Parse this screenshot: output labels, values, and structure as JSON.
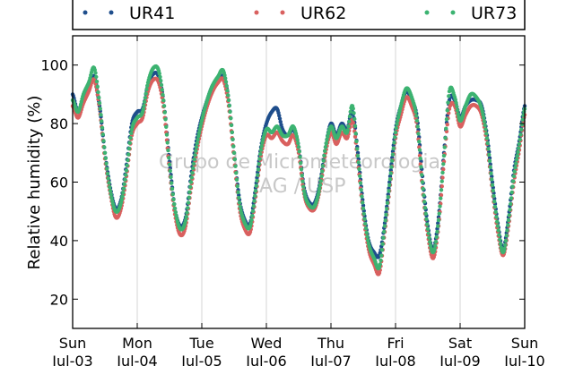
{
  "chart_data": {
    "type": "scatter",
    "title": "",
    "ylabel": "Relative humidity (%)",
    "xlabel": "",
    "ylim": [
      10,
      110
    ],
    "yticks": [
      20,
      40,
      60,
      80,
      100
    ],
    "xlim": [
      "2011-07-03 00:00",
      "2011-07-10 00:00"
    ],
    "xticks": [
      {
        "date": "2011-07-03",
        "day": "Sun",
        "date_label": "Jul-03"
      },
      {
        "date": "2011-07-04",
        "day": "Mon",
        "date_label": "Jul-04"
      },
      {
        "date": "2011-07-05",
        "day": "Tue",
        "date_label": "Jul-05"
      },
      {
        "date": "2011-07-06",
        "day": "Wed",
        "date_label": "Jul-06"
      },
      {
        "date": "2011-07-07",
        "day": "Thu",
        "date_label": "Jul-07"
      },
      {
        "date": "2011-07-08",
        "day": "Fri",
        "date_label": "Jul-08"
      },
      {
        "date": "2011-07-09",
        "day": "Sat",
        "date_label": "Jul-09"
      },
      {
        "date": "2011-07-10",
        "day": "Sun",
        "date_label": "Jul-10"
      }
    ],
    "grid": "vertical",
    "legend_placement": "top, outside",
    "watermark": [
      "Grupo de Micrometeorologia",
      "IAG / USP"
    ],
    "series": [
      {
        "name": "UR41",
        "color": "#1f4e8c",
        "points": [
          [
            "2011-07-03 00:00",
            90
          ],
          [
            "2011-07-03 02:00",
            84
          ],
          [
            "2011-07-03 04:00",
            89
          ],
          [
            "2011-07-03 06:00",
            93
          ],
          [
            "2011-07-03 08:00",
            96
          ],
          [
            "2011-07-03 10:00",
            86
          ],
          [
            "2011-07-03 12:00",
            70
          ],
          [
            "2011-07-03 14:00",
            58
          ],
          [
            "2011-07-03 16:00",
            51
          ],
          [
            "2011-07-03 18:00",
            54
          ],
          [
            "2011-07-03 20:00",
            66
          ],
          [
            "2011-07-03 22:00",
            80
          ],
          [
            "2011-07-04 00:00",
            84
          ],
          [
            "2011-07-04 02:00",
            85
          ],
          [
            "2011-07-04 04:00",
            93
          ],
          [
            "2011-07-04 06:00",
            97
          ],
          [
            "2011-07-04 08:00",
            96
          ],
          [
            "2011-07-04 10:00",
            86
          ],
          [
            "2011-07-04 12:00",
            67
          ],
          [
            "2011-07-04 14:00",
            51
          ],
          [
            "2011-07-04 16:00",
            45
          ],
          [
            "2011-07-04 18:00",
            48
          ],
          [
            "2011-07-04 20:00",
            62
          ],
          [
            "2011-07-04 22:00",
            74
          ],
          [
            "2011-07-05 00:00",
            82
          ],
          [
            "2011-07-05 02:00",
            88
          ],
          [
            "2011-07-05 04:00",
            93
          ],
          [
            "2011-07-05 06:00",
            95
          ],
          [
            "2011-07-05 08:00",
            96
          ],
          [
            "2011-07-05 10:00",
            88
          ],
          [
            "2011-07-05 12:00",
            70
          ],
          [
            "2011-07-05 14:00",
            54
          ],
          [
            "2011-07-05 16:00",
            47
          ],
          [
            "2011-07-05 18:00",
            46
          ],
          [
            "2011-07-05 20:00",
            58
          ],
          [
            "2011-07-05 22:00",
            72
          ],
          [
            "2011-07-06 00:00",
            80
          ],
          [
            "2011-07-06 02:00",
            84
          ],
          [
            "2011-07-06 04:00",
            85
          ],
          [
            "2011-07-06 06:00",
            78
          ],
          [
            "2011-07-06 08:00",
            76
          ],
          [
            "2011-07-06 10:00",
            78
          ],
          [
            "2011-07-06 12:00",
            72
          ],
          [
            "2011-07-06 14:00",
            58
          ],
          [
            "2011-07-06 16:00",
            53
          ],
          [
            "2011-07-06 18:00",
            53
          ],
          [
            "2011-07-06 20:00",
            60
          ],
          [
            "2011-07-06 22:00",
            72
          ],
          [
            "2011-07-07 00:00",
            80
          ],
          [
            "2011-07-07 02:00",
            76
          ],
          [
            "2011-07-07 04:00",
            80
          ],
          [
            "2011-07-07 06:00",
            78
          ],
          [
            "2011-07-07 08:00",
            84
          ],
          [
            "2011-07-07 10:00",
            70
          ],
          [
            "2011-07-07 12:00",
            52
          ],
          [
            "2011-07-07 14:00",
            40
          ],
          [
            "2011-07-07 16:00",
            36
          ],
          [
            "2011-07-07 18:00",
            35
          ],
          [
            "2011-07-07 20:00",
            46
          ],
          [
            "2011-07-07 22:00",
            62
          ],
          [
            "2011-07-08 00:00",
            78
          ],
          [
            "2011-07-08 02:00",
            86
          ],
          [
            "2011-07-08 04:00",
            91
          ],
          [
            "2011-07-08 06:00",
            88
          ],
          [
            "2011-07-08 08:00",
            82
          ],
          [
            "2011-07-08 10:00",
            62
          ],
          [
            "2011-07-08 12:00",
            45
          ],
          [
            "2011-07-08 14:00",
            37
          ],
          [
            "2011-07-08 16:00",
            48
          ],
          [
            "2011-07-08 18:00",
            70
          ],
          [
            "2011-07-08 20:00",
            88
          ],
          [
            "2011-07-08 22:00",
            88
          ],
          [
            "2011-07-09 00:00",
            82
          ],
          [
            "2011-07-09 02:00",
            86
          ],
          [
            "2011-07-09 04:00",
            88
          ],
          [
            "2011-07-09 06:00",
            88
          ],
          [
            "2011-07-09 08:00",
            86
          ],
          [
            "2011-07-09 10:00",
            76
          ],
          [
            "2011-07-09 12:00",
            60
          ],
          [
            "2011-07-09 14:00",
            46
          ],
          [
            "2011-07-09 16:00",
            37
          ],
          [
            "2011-07-09 18:00",
            48
          ],
          [
            "2011-07-09 20:00",
            64
          ],
          [
            "2011-07-09 22:00",
            74
          ],
          [
            "2011-07-10 00:00",
            86
          ]
        ]
      },
      {
        "name": "UR62",
        "color": "#d9605f",
        "points": [
          [
            "2011-07-03 00:00",
            86
          ],
          [
            "2011-07-03 02:00",
            82
          ],
          [
            "2011-07-03 04:00",
            87
          ],
          [
            "2011-07-03 06:00",
            91
          ],
          [
            "2011-07-03 08:00",
            95
          ],
          [
            "2011-07-03 10:00",
            85
          ],
          [
            "2011-07-03 12:00",
            68
          ],
          [
            "2011-07-03 14:00",
            56
          ],
          [
            "2011-07-03 16:00",
            48
          ],
          [
            "2011-07-03 18:00",
            51
          ],
          [
            "2011-07-03 20:00",
            62
          ],
          [
            "2011-07-03 22:00",
            76
          ],
          [
            "2011-07-04 00:00",
            80
          ],
          [
            "2011-07-04 02:00",
            82
          ],
          [
            "2011-07-04 04:00",
            91
          ],
          [
            "2011-07-04 06:00",
            95
          ],
          [
            "2011-07-04 08:00",
            94
          ],
          [
            "2011-07-04 10:00",
            84
          ],
          [
            "2011-07-04 12:00",
            64
          ],
          [
            "2011-07-04 14:00",
            49
          ],
          [
            "2011-07-04 16:00",
            42
          ],
          [
            "2011-07-04 18:00",
            45
          ],
          [
            "2011-07-04 20:00",
            58
          ],
          [
            "2011-07-04 22:00",
            70
          ],
          [
            "2011-07-05 00:00",
            79
          ],
          [
            "2011-07-05 02:00",
            86
          ],
          [
            "2011-07-05 04:00",
            91
          ],
          [
            "2011-07-05 06:00",
            94
          ],
          [
            "2011-07-05 08:00",
            95
          ],
          [
            "2011-07-05 10:00",
            86
          ],
          [
            "2011-07-05 12:00",
            68
          ],
          [
            "2011-07-05 14:00",
            51
          ],
          [
            "2011-07-05 16:00",
            44
          ],
          [
            "2011-07-05 18:00",
            43
          ],
          [
            "2011-07-05 20:00",
            55
          ],
          [
            "2011-07-05 22:00",
            69
          ],
          [
            "2011-07-06 00:00",
            76
          ],
          [
            "2011-07-06 02:00",
            75
          ],
          [
            "2011-07-06 04:00",
            77
          ],
          [
            "2011-07-06 06:00",
            74
          ],
          [
            "2011-07-06 08:00",
            73
          ],
          [
            "2011-07-06 10:00",
            76
          ],
          [
            "2011-07-06 12:00",
            70
          ],
          [
            "2011-07-06 14:00",
            56
          ],
          [
            "2011-07-06 16:00",
            51
          ],
          [
            "2011-07-06 18:00",
            51
          ],
          [
            "2011-07-06 20:00",
            58
          ],
          [
            "2011-07-06 22:00",
            70
          ],
          [
            "2011-07-07 00:00",
            77
          ],
          [
            "2011-07-07 02:00",
            73
          ],
          [
            "2011-07-07 04:00",
            77
          ],
          [
            "2011-07-07 06:00",
            75
          ],
          [
            "2011-07-07 08:00",
            81
          ],
          [
            "2011-07-07 10:00",
            67
          ],
          [
            "2011-07-07 12:00",
            49
          ],
          [
            "2011-07-07 14:00",
            37
          ],
          [
            "2011-07-07 16:00",
            32
          ],
          [
            "2011-07-07 18:00",
            29
          ],
          [
            "2011-07-07 20:00",
            43
          ],
          [
            "2011-07-07 22:00",
            59
          ],
          [
            "2011-07-08 00:00",
            75
          ],
          [
            "2011-07-08 02:00",
            83
          ],
          [
            "2011-07-08 04:00",
            89
          ],
          [
            "2011-07-08 06:00",
            86
          ],
          [
            "2011-07-08 08:00",
            79
          ],
          [
            "2011-07-08 10:00",
            58
          ],
          [
            "2011-07-08 12:00",
            42
          ],
          [
            "2011-07-08 14:00",
            34
          ],
          [
            "2011-07-08 16:00",
            45
          ],
          [
            "2011-07-08 18:00",
            67
          ],
          [
            "2011-07-08 20:00",
            85
          ],
          [
            "2011-07-08 22:00",
            86
          ],
          [
            "2011-07-09 00:00",
            79
          ],
          [
            "2011-07-09 02:00",
            83
          ],
          [
            "2011-07-09 04:00",
            86
          ],
          [
            "2011-07-09 06:00",
            86
          ],
          [
            "2011-07-09 08:00",
            83
          ],
          [
            "2011-07-09 10:00",
            73
          ],
          [
            "2011-07-09 12:00",
            57
          ],
          [
            "2011-07-09 14:00",
            43
          ],
          [
            "2011-07-09 16:00",
            35
          ],
          [
            "2011-07-09 18:00",
            45
          ],
          [
            "2011-07-09 20:00",
            60
          ],
          [
            "2011-07-09 22:00",
            71
          ],
          [
            "2011-07-10 00:00",
            83
          ]
        ]
      },
      {
        "name": "UR73",
        "color": "#3cb371",
        "points": [
          [
            "2011-07-03 00:00",
            88
          ],
          [
            "2011-07-03 02:00",
            84
          ],
          [
            "2011-07-03 04:00",
            90
          ],
          [
            "2011-07-03 06:00",
            94
          ],
          [
            "2011-07-03 08:00",
            99
          ],
          [
            "2011-07-03 10:00",
            87
          ],
          [
            "2011-07-03 12:00",
            70
          ],
          [
            "2011-07-03 14:00",
            57
          ],
          [
            "2011-07-03 16:00",
            50
          ],
          [
            "2011-07-03 18:00",
            53
          ],
          [
            "2011-07-03 20:00",
            64
          ],
          [
            "2011-07-03 22:00",
            78
          ],
          [
            "2011-07-04 00:00",
            82
          ],
          [
            "2011-07-04 02:00",
            84
          ],
          [
            "2011-07-04 04:00",
            94
          ],
          [
            "2011-07-04 06:00",
            99
          ],
          [
            "2011-07-04 08:00",
            98
          ],
          [
            "2011-07-04 10:00",
            86
          ],
          [
            "2011-07-04 12:00",
            66
          ],
          [
            "2011-07-04 14:00",
            51
          ],
          [
            "2011-07-04 16:00",
            44
          ],
          [
            "2011-07-04 18:00",
            47
          ],
          [
            "2011-07-04 20:00",
            60
          ],
          [
            "2011-07-04 22:00",
            72
          ],
          [
            "2011-07-05 00:00",
            81
          ],
          [
            "2011-07-05 02:00",
            88
          ],
          [
            "2011-07-05 04:00",
            93
          ],
          [
            "2011-07-05 06:00",
            96
          ],
          [
            "2011-07-05 08:00",
            98
          ],
          [
            "2011-07-05 10:00",
            88
          ],
          [
            "2011-07-05 12:00",
            70
          ],
          [
            "2011-07-05 14:00",
            53
          ],
          [
            "2011-07-05 16:00",
            46
          ],
          [
            "2011-07-05 18:00",
            45
          ],
          [
            "2011-07-05 20:00",
            57
          ],
          [
            "2011-07-05 22:00",
            71
          ],
          [
            "2011-07-06 00:00",
            78
          ],
          [
            "2011-07-06 02:00",
            77
          ],
          [
            "2011-07-06 04:00",
            79
          ],
          [
            "2011-07-06 06:00",
            76
          ],
          [
            "2011-07-06 08:00",
            76
          ],
          [
            "2011-07-06 10:00",
            79
          ],
          [
            "2011-07-06 12:00",
            72
          ],
          [
            "2011-07-06 14:00",
            57
          ],
          [
            "2011-07-06 16:00",
            52
          ],
          [
            "2011-07-06 18:00",
            52
          ],
          [
            "2011-07-06 20:00",
            59
          ],
          [
            "2011-07-06 22:00",
            72
          ],
          [
            "2011-07-07 00:00",
            79
          ],
          [
            "2011-07-07 02:00",
            75
          ],
          [
            "2011-07-07 04:00",
            79
          ],
          [
            "2011-07-07 06:00",
            77
          ],
          [
            "2011-07-07 08:00",
            86
          ],
          [
            "2011-07-07 10:00",
            69
          ],
          [
            "2011-07-07 12:00",
            51
          ],
          [
            "2011-07-07 14:00",
            39
          ],
          [
            "2011-07-07 16:00",
            34
          ],
          [
            "2011-07-07 18:00",
            31
          ],
          [
            "2011-07-07 20:00",
            45
          ],
          [
            "2011-07-07 22:00",
            61
          ],
          [
            "2011-07-08 00:00",
            77
          ],
          [
            "2011-07-08 02:00",
            86
          ],
          [
            "2011-07-08 04:00",
            92
          ],
          [
            "2011-07-08 06:00",
            89
          ],
          [
            "2011-07-08 08:00",
            81
          ],
          [
            "2011-07-08 10:00",
            60
          ],
          [
            "2011-07-08 12:00",
            44
          ],
          [
            "2011-07-08 14:00",
            36
          ],
          [
            "2011-07-08 16:00",
            47
          ],
          [
            "2011-07-08 18:00",
            69
          ],
          [
            "2011-07-08 20:00",
            91
          ],
          [
            "2011-07-08 22:00",
            89
          ],
          [
            "2011-07-09 00:00",
            81
          ],
          [
            "2011-07-09 02:00",
            86
          ],
          [
            "2011-07-09 04:00",
            90
          ],
          [
            "2011-07-09 06:00",
            89
          ],
          [
            "2011-07-09 08:00",
            85
          ],
          [
            "2011-07-09 10:00",
            75
          ],
          [
            "2011-07-09 12:00",
            59
          ],
          [
            "2011-07-09 14:00",
            45
          ],
          [
            "2011-07-09 16:00",
            36
          ],
          [
            "2011-07-09 18:00",
            47
          ],
          [
            "2011-07-09 20:00",
            62
          ],
          [
            "2011-07-09 22:00",
            73
          ],
          [
            "2011-07-10 00:00",
            85
          ]
        ]
      }
    ]
  }
}
